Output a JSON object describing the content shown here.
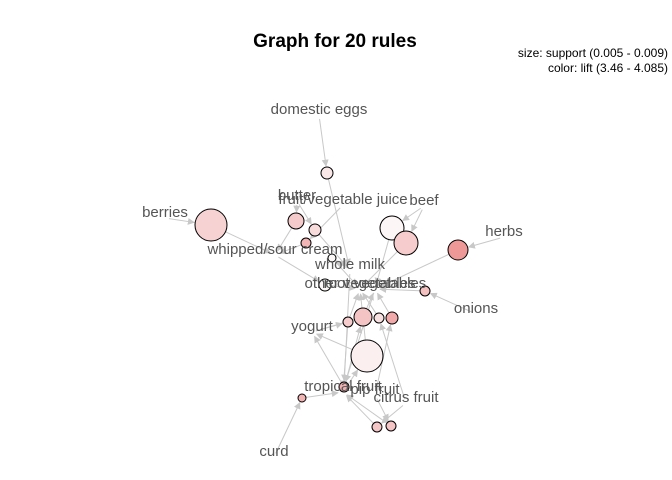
{
  "title": "Graph for 20 rules",
  "legend": {
    "size": "size: support (0.005 - 0.009)",
    "color": "color: lift (3.46 - 4.085)"
  },
  "items": [
    "domestic eggs",
    "butter",
    "fruit/vegetable juice",
    "beef",
    "berries",
    "herbs",
    "whipped/sour cream",
    "whole milk",
    "other vegetables",
    "root vegetables",
    "onions",
    "yogurt",
    "tropical fruit",
    "pip fruit",
    "citrus fruit",
    "curd"
  ],
  "rules": [
    {
      "id": "rule-1",
      "lift": 3.55,
      "support": 0.006,
      "color": "#fae8e8"
    },
    {
      "id": "rule-2",
      "lift": 3.8,
      "support": 0.007,
      "color": "#f5caca"
    },
    {
      "id": "rule-3",
      "lift": 3.62,
      "support": 0.005,
      "color": "#f8dcdc"
    },
    {
      "id": "rule-4",
      "lift": 3.95,
      "support": 0.005,
      "color": "#f2b5b5"
    },
    {
      "id": "rule-5",
      "lift": 3.7,
      "support": 0.009,
      "color": "#f6d2d2"
    },
    {
      "id": "rule-6",
      "lift": 3.46,
      "support": 0.009,
      "color": "#fdf6f6"
    },
    {
      "id": "rule-7",
      "lift": 3.75,
      "support": 0.008,
      "color": "#f6cccc"
    },
    {
      "id": "rule-8",
      "lift": 4.085,
      "support": 0.007,
      "color": "#ee9898"
    },
    {
      "id": "rule-9",
      "lift": 3.46,
      "support": 0.005,
      "color": "#fdf8f8"
    },
    {
      "id": "rule-10",
      "lift": 3.46,
      "support": 0.005,
      "color": "#fdf7f7"
    },
    {
      "id": "rule-11",
      "lift": 3.85,
      "support": 0.005,
      "color": "#f4c0c0"
    },
    {
      "id": "rule-12",
      "lift": 3.75,
      "support": 0.005,
      "color": "#f6cccc"
    },
    {
      "id": "rule-13",
      "lift": 3.8,
      "support": 0.007,
      "color": "#f4c4c4"
    },
    {
      "id": "rule-14",
      "lift": 3.62,
      "support": 0.005,
      "color": "#f9e0e0"
    },
    {
      "id": "rule-15",
      "lift": 4.0,
      "support": 0.005,
      "color": "#f1a9a9"
    },
    {
      "id": "rule-16",
      "lift": 3.48,
      "support": 0.009,
      "color": "#fbefef"
    },
    {
      "id": "rule-17",
      "lift": 3.95,
      "support": 0.005,
      "color": "#f2b3b3"
    },
    {
      "id": "rule-18",
      "lift": 3.8,
      "support": 0.005,
      "color": "#f5c6c6"
    },
    {
      "id": "rule-19",
      "lift": 3.8,
      "support": 0.005,
      "color": "#f5c4c4"
    },
    {
      "id": "rule-20",
      "lift": 3.95,
      "support": 0.005,
      "color": "#f2b0b0"
    }
  ]
}
